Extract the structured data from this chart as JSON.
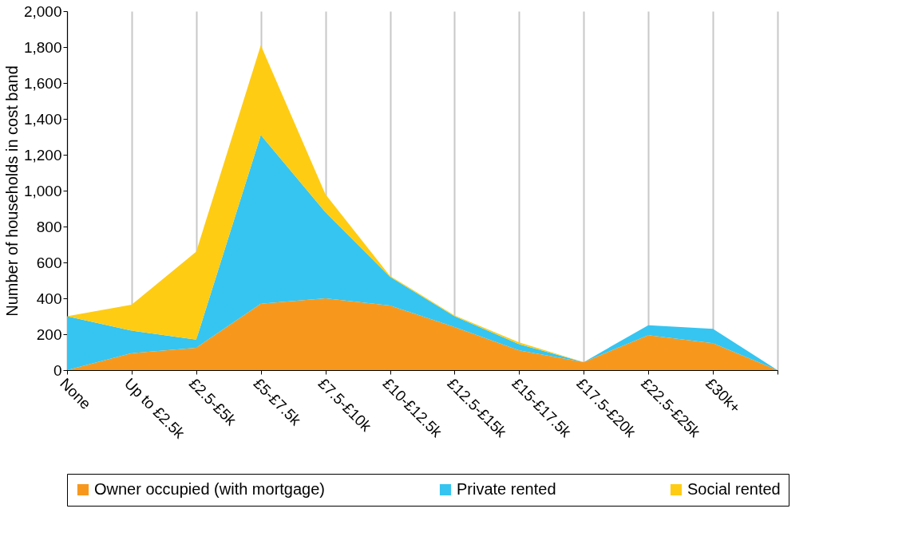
{
  "chart_data": {
    "type": "area",
    "stacked": true,
    "ylabel": "Number of households in cost band",
    "categories": [
      "None",
      "Up to £2.5k",
      "£2.5-£5k",
      "£5-£7.5k",
      "£7.5-£10k",
      "£10-£12.5k",
      "£12.5-£15k",
      "£15-£17.5k",
      "£17.5-£20k",
      "£22.5-£25k",
      "£30k+",
      null
    ],
    "series": [
      {
        "name": "Owner occupied (with mortgage)",
        "color": "#f7981d",
        "values": [
          0,
          95,
          125,
          370,
          400,
          360,
          240,
          110,
          45,
          195,
          150,
          0
        ]
      },
      {
        "name": "Private rented",
        "color": "#36c5f0",
        "values": [
          300,
          125,
          45,
          940,
          480,
          160,
          60,
          35,
          0,
          55,
          80,
          0
        ]
      },
      {
        "name": "Social rented",
        "color": "#ffcc14",
        "values": [
          0,
          145,
          490,
          500,
          100,
          5,
          5,
          10,
          0,
          0,
          0,
          0
        ]
      }
    ],
    "ylim": [
      0,
      2000
    ],
    "yticks": [
      0,
      200,
      400,
      600,
      800,
      {
        "value": 1000,
        "label": "1,000"
      },
      {
        "value": 1200,
        "label": "1,200"
      },
      {
        "value": 1400,
        "label": "1,400"
      },
      {
        "value": 1600,
        "label": "1,600"
      },
      {
        "value": 1800,
        "label": "1,800"
      },
      {
        "value": 2000,
        "label": "2,000"
      }
    ],
    "grid": "x",
    "legend": "bottom"
  }
}
